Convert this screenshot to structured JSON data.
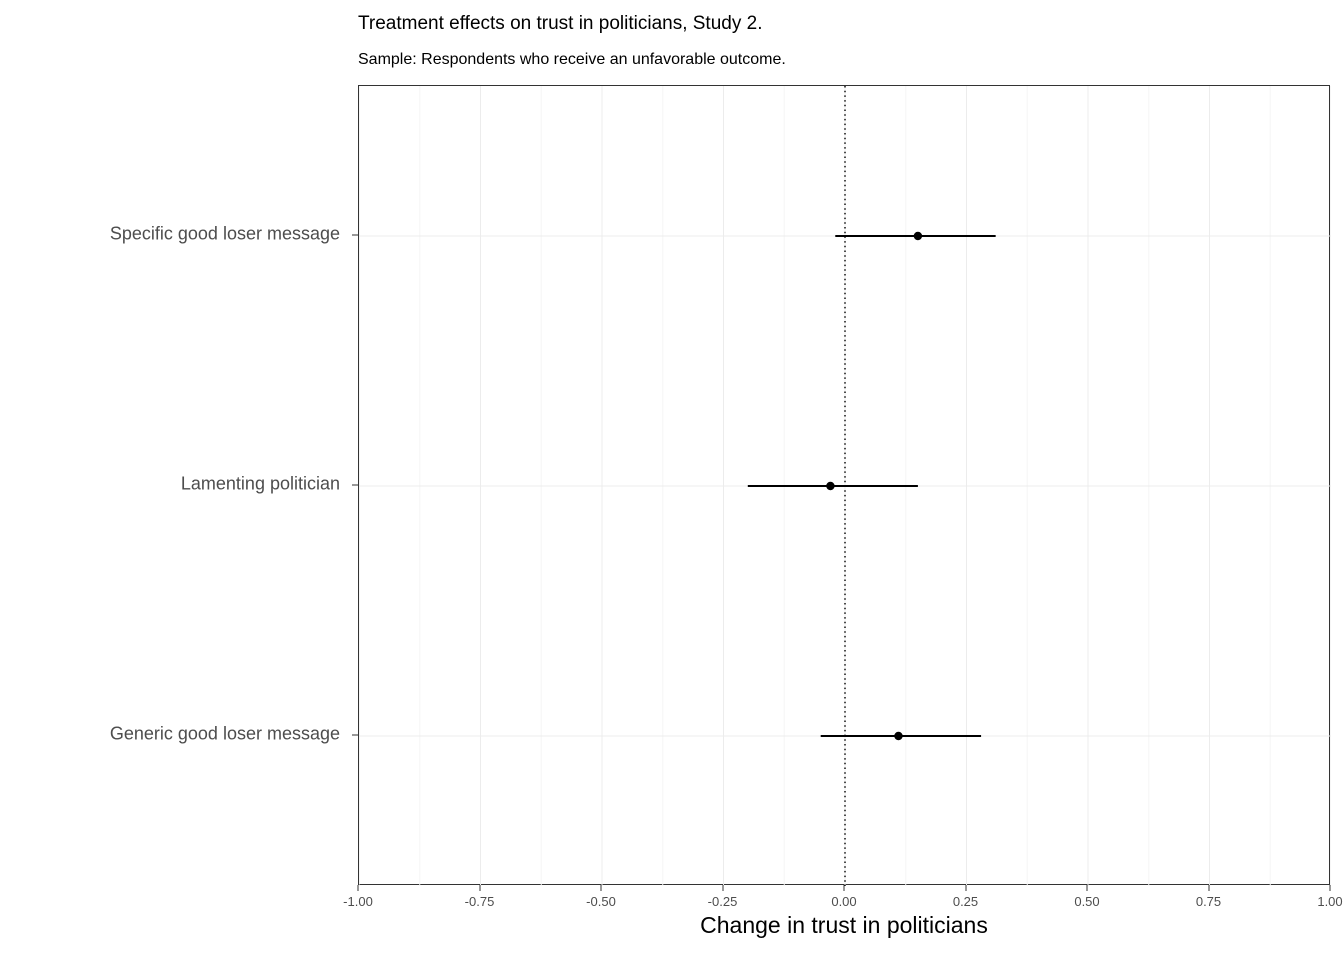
{
  "chart_data": {
    "type": "scatter",
    "subtype": "coefficient-dot-whisker",
    "title": "Treatment effects on trust in politicians, Study 2.",
    "subtitle": "Sample: Respondents who receive an unfavorable outcome.",
    "xlabel": "Change in trust in politicians",
    "ylabel": "",
    "xlim": [
      -1.0,
      1.0
    ],
    "x_ticks": [
      -1.0,
      -0.75,
      -0.5,
      -0.25,
      0.0,
      0.25,
      0.5,
      0.75,
      1.0
    ],
    "x_tick_labels": [
      "-1.00",
      "-0.75",
      "-0.50",
      "-0.25",
      "0.00",
      "0.25",
      "0.50",
      "0.75",
      "1.00"
    ],
    "categories": [
      "Specific good loser message",
      "Lamenting politician",
      "Generic good loser message"
    ],
    "points": [
      {
        "label": "Specific good loser message",
        "estimate": 0.15,
        "ci_low": -0.02,
        "ci_high": 0.31
      },
      {
        "label": "Lamenting politician",
        "estimate": -0.03,
        "ci_low": -0.2,
        "ci_high": 0.15
      },
      {
        "label": "Generic good loser message",
        "estimate": 0.11,
        "ci_low": -0.05,
        "ci_high": 0.28
      }
    ],
    "reference_line": {
      "x": 0,
      "style": "dotted"
    },
    "grid": true,
    "legend": "none",
    "colors": {
      "point": "#000000",
      "ci_line": "#000000",
      "grid_major": "#ececec",
      "grid_minor": "#f6f6f6",
      "panel_border": "#333333",
      "axis_text": "#4d4d4d",
      "title": "#000000"
    }
  }
}
